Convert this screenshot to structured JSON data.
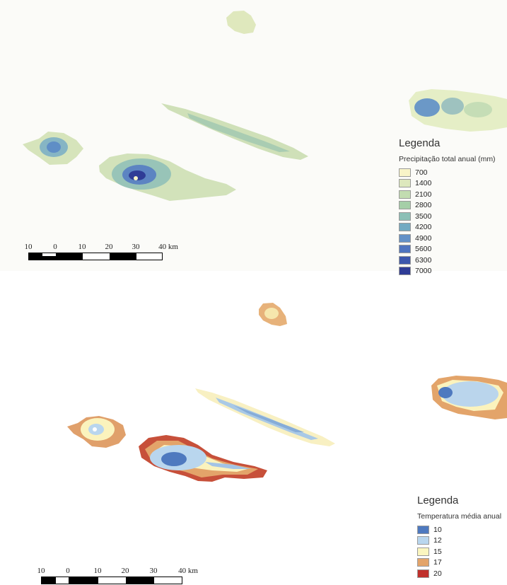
{
  "maps": [
    {
      "id": "precipitation",
      "legend": {
        "title": "Legenda",
        "subtitle": "Precipitação total anual (mm)",
        "classes": [
          {
            "label": "700",
            "color": "#f8f4c8"
          },
          {
            "label": "1400",
            "color": "#dde8bd"
          },
          {
            "label": "2100",
            "color": "#c2dcb0"
          },
          {
            "label": "2800",
            "color": "#a5cfa7"
          },
          {
            "label": "3500",
            "color": "#8bc0b6"
          },
          {
            "label": "4200",
            "color": "#73aac2"
          },
          {
            "label": "4900",
            "color": "#6491c7"
          },
          {
            "label": "5600",
            "color": "#4f74bf"
          },
          {
            "label": "6300",
            "color": "#3d57ad"
          },
          {
            "label": "7000",
            "color": "#2f3c96"
          }
        ]
      },
      "scalebar": {
        "labels": [
          "10",
          "0",
          "10",
          "20",
          "30",
          "40 km"
        ]
      }
    },
    {
      "id": "temperature",
      "legend": {
        "title": "Legenda",
        "subtitle": "Temperatura média anual",
        "classes": [
          {
            "label": "10",
            "color": "#4e79bf"
          },
          {
            "label": "12",
            "color": "#b9d6ee"
          },
          {
            "label": "15",
            "color": "#fbf6bf"
          },
          {
            "label": "17",
            "color": "#e3a46a"
          },
          {
            "label": "20",
            "color": "#c0302b"
          }
        ]
      },
      "scalebar": {
        "labels": [
          "10",
          "0",
          "10",
          "20",
          "30",
          "40 km"
        ]
      }
    }
  ]
}
